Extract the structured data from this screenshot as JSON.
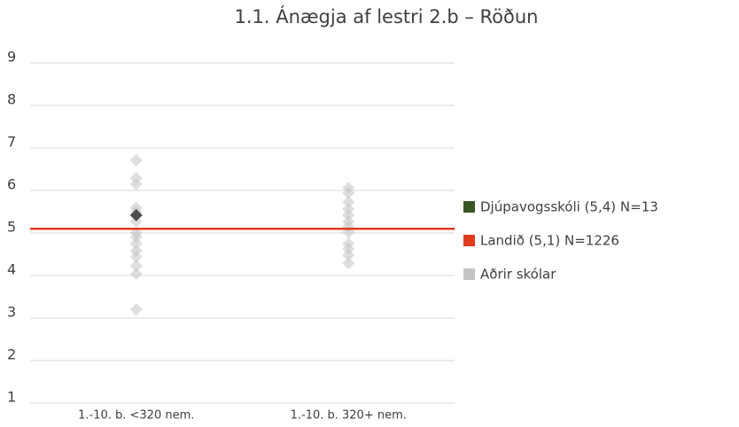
{
  "chart_data": {
    "type": "dot",
    "title": "1.1. Ánægja af lestri 2.b – Röðun",
    "categories": [
      "1.-10. b. <320 nem.",
      "1.-10. b. 320+ nem."
    ],
    "ylim": [
      1,
      9
    ],
    "yticks": [
      1,
      2,
      3,
      4,
      5,
      6,
      7,
      8,
      9
    ],
    "grid": true,
    "legend": "right",
    "series": [
      {
        "name": "Djúpavogsskóli (5,4) N=13",
        "color": "#375623",
        "marker_color": "#4d4d4d",
        "values": [
          [
            5.42
          ],
          []
        ]
      },
      {
        "name": "Landið (5,1) N=1226",
        "color": "#e03c1e",
        "value": 5.1
      },
      {
        "name": "Aðrir skólar",
        "color": "#c4c4c4",
        "values": [
          [
            6.71,
            6.29,
            6.15,
            5.6,
            5.5,
            5.27,
            5.0,
            4.9,
            4.75,
            4.58,
            4.44,
            4.23,
            4.04,
            3.2
          ],
          [
            6.06,
            5.94,
            5.73,
            5.56,
            5.42,
            5.27,
            5.15,
            5.02,
            4.75,
            4.63,
            4.48,
            4.29
          ]
        ]
      }
    ]
  }
}
